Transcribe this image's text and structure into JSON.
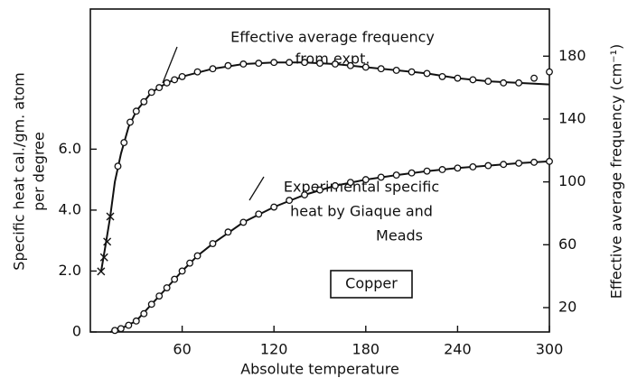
{
  "chart_data": {
    "type": "line",
    "xlabel": "Absolute temperature",
    "ylabel": [
      "Specific heat cal./gm. atom",
      "per degree"
    ],
    "y2label": "Effective average frequency (cm⁻¹)",
    "annotations": [
      {
        "lines": [
          "Effective average frequency",
          "from expt."
        ]
      },
      {
        "lines": [
          "Experimental specific",
          "heat by Giaque and",
          "Meads"
        ]
      },
      {
        "lines": [
          "Copper"
        ]
      }
    ],
    "xlim": [
      0,
      300
    ],
    "xticks": [
      60,
      120,
      180,
      240,
      300
    ],
    "ylim": [
      0,
      10.6
    ],
    "yticks": [
      0,
      {
        "value": 2,
        "label": "2.0"
      },
      {
        "value": 4,
        "label": "4.0"
      },
      {
        "value": 6,
        "label": "6.0"
      }
    ],
    "y2lim": [
      4.5,
      210
    ],
    "y2ticks": [
      20,
      60,
      100,
      140,
      180
    ],
    "series": [
      {
        "axis": "y",
        "color": "#111",
        "line": true,
        "marker": "none",
        "x": [
          13,
          20,
          30,
          40,
          50,
          60,
          70,
          80,
          100,
          120,
          140,
          160,
          180,
          200,
          220,
          240,
          260,
          280,
          300
        ],
        "values": [
          0,
          0.11,
          0.36,
          0.91,
          1.45,
          2.0,
          2.5,
          2.9,
          3.6,
          4.1,
          4.5,
          4.8,
          5.0,
          5.15,
          5.28,
          5.38,
          5.46,
          5.54,
          5.6
        ]
      },
      {
        "axis": "y",
        "color": "#111",
        "line": false,
        "marker": "circle",
        "x": [
          16,
          20,
          25,
          30,
          35,
          40,
          45,
          50,
          55,
          60,
          65,
          70,
          80,
          90,
          100,
          110,
          120,
          130,
          140,
          150,
          160,
          170,
          180,
          190,
          200,
          210,
          220,
          230,
          240,
          250,
          260,
          270,
          280,
          290,
          300
        ],
        "values": [
          0.05,
          0.11,
          0.22,
          0.36,
          0.6,
          0.91,
          1.18,
          1.45,
          1.73,
          2.0,
          2.26,
          2.5,
          2.9,
          3.28,
          3.6,
          3.87,
          4.1,
          4.32,
          4.5,
          4.66,
          4.8,
          4.91,
          5.0,
          5.08,
          5.15,
          5.22,
          5.28,
          5.33,
          5.38,
          5.42,
          5.46,
          5.5,
          5.54,
          5.57,
          5.6
        ]
      },
      {
        "axis": "y2",
        "color": "#111",
        "line": true,
        "marker": "none",
        "x": [
          7,
          10,
          13,
          16,
          20,
          25,
          30,
          40,
          50,
          60,
          80,
          100,
          120,
          140,
          160,
          180,
          200,
          220,
          240,
          260,
          280,
          300
        ],
        "values": [
          43,
          60,
          78,
          100,
          118,
          135,
          145,
          157,
          163,
          167,
          172,
          175,
          176,
          176,
          175,
          173,
          171,
          169,
          166,
          164,
          163,
          162
        ]
      },
      {
        "axis": "y2",
        "color": "#111",
        "line": false,
        "marker": "circle",
        "x": [
          18,
          22,
          26,
          30,
          35,
          40,
          45,
          50,
          55,
          60,
          70,
          80,
          90,
          100,
          110,
          120,
          130,
          140,
          150,
          160,
          170,
          180,
          190,
          200,
          210,
          220,
          230,
          240,
          250,
          260,
          270,
          280,
          290,
          300
        ],
        "values": [
          110,
          125,
          138,
          145,
          151,
          157,
          160,
          163,
          165,
          167,
          170,
          172,
          174,
          175,
          175.5,
          176,
          176,
          176,
          175.5,
          175,
          174,
          173,
          172,
          171,
          170,
          169,
          167,
          166,
          165,
          164,
          163,
          163,
          166,
          170
        ]
      },
      {
        "axis": "y2",
        "color": "#111",
        "line": false,
        "marker": "x",
        "x": [
          7,
          9,
          11,
          13
        ],
        "values": [
          43,
          52,
          62,
          78
        ]
      }
    ]
  }
}
